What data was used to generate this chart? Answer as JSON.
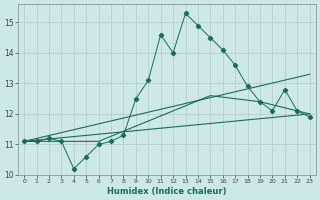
{
  "xlabel": "Humidex (Indice chaleur)",
  "bg_color": "#cce8e8",
  "grid_color": "#b8c8c0",
  "line_color": "#1a6b5a",
  "xlim": [
    -0.5,
    23.5
  ],
  "ylim": [
    10.0,
    15.6
  ],
  "yticks": [
    10,
    11,
    12,
    13,
    14,
    15
  ],
  "xticks": [
    0,
    1,
    2,
    3,
    4,
    5,
    6,
    7,
    8,
    9,
    10,
    11,
    12,
    13,
    14,
    15,
    16,
    17,
    18,
    19,
    20,
    21,
    22,
    23
  ],
  "series1_x": [
    0,
    1,
    2,
    3,
    4,
    5,
    6,
    7,
    8,
    9,
    10,
    11,
    12,
    13,
    14,
    15,
    16,
    17,
    18,
    19,
    20,
    21,
    22,
    23
  ],
  "series1_y": [
    11.1,
    11.1,
    11.2,
    11.1,
    10.2,
    10.6,
    11.0,
    11.1,
    11.3,
    12.5,
    13.1,
    14.6,
    14.0,
    15.3,
    14.9,
    14.5,
    14.1,
    13.6,
    12.9,
    12.4,
    12.1,
    12.8,
    12.1,
    11.9
  ],
  "series2_x": [
    0,
    23
  ],
  "series2_y": [
    11.1,
    13.3
  ],
  "series3_x": [
    0,
    23
  ],
  "series3_y": [
    11.1,
    12.0
  ],
  "series4_x": [
    0,
    6,
    9,
    15,
    19,
    23
  ],
  "series4_y": [
    11.1,
    11.1,
    11.6,
    12.6,
    12.4,
    12.0
  ]
}
